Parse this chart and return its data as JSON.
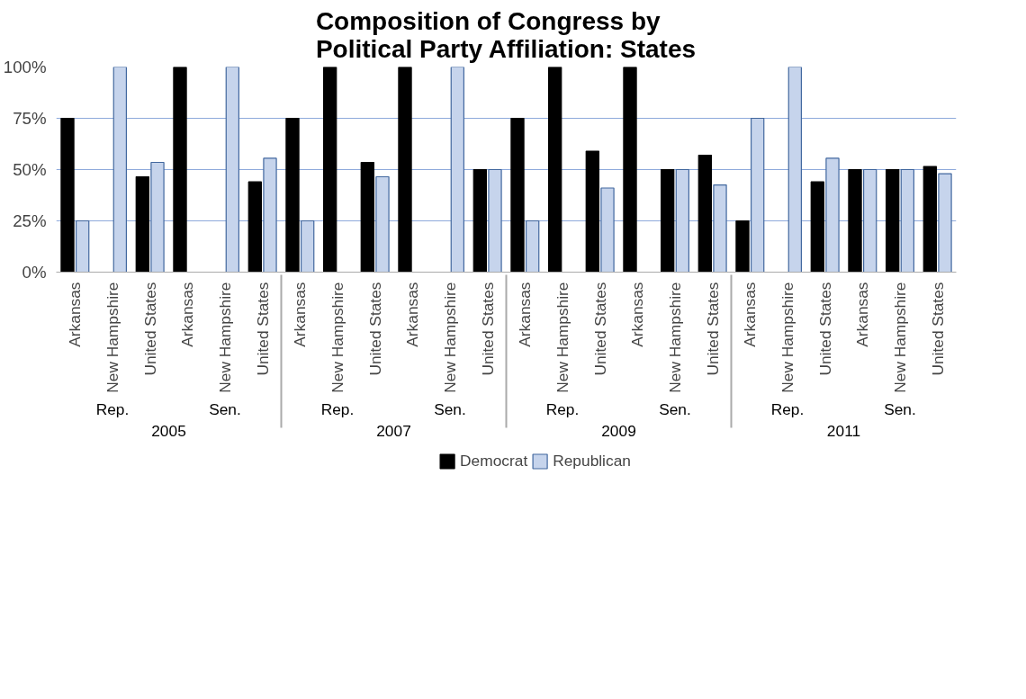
{
  "chart_data": {
    "type": "bar",
    "title": "Composition of Congress by\nPolitical Party Affiliation: States",
    "categories": [
      "Arkansas",
      "New Hampshire",
      "United States",
      "Arkansas",
      "New Hampshire",
      "United States",
      "Arkansas",
      "New Hampshire",
      "United States",
      "Arkansas",
      "New Hampshire",
      "United States",
      "Arkansas",
      "New Hampshire",
      "United States",
      "Arkansas",
      "New Hampshire",
      "United States",
      "Arkansas",
      "New Hampshire",
      "United States",
      "Arkansas",
      "New Hampshire",
      "United States"
    ],
    "annotations": [
      "Rep.",
      "Sen.",
      "Rep.",
      "Sen.",
      "Rep.",
      "Sen.",
      "Rep.",
      "Sen.",
      "2005",
      "2007",
      "2009",
      "2011"
    ],
    "series": [
      {
        "name": "Democrat",
        "color": "#000000",
        "values": [
          75,
          null,
          46.5,
          100,
          null,
          44,
          75,
          100,
          53.5,
          100,
          null,
          50,
          75,
          100,
          59,
          100,
          50,
          57,
          25,
          null,
          44,
          50,
          50,
          51.5
        ]
      },
      {
        "name": "Republican",
        "color": "#c6d4ec",
        "values": [
          25,
          100,
          53.5,
          null,
          100,
          55.5,
          25,
          null,
          46.5,
          null,
          100,
          50,
          25,
          null,
          41,
          null,
          50,
          42.5,
          75,
          100,
          55.5,
          50,
          50,
          48
        ]
      }
    ],
    "ylim": [
      0,
      100
    ],
    "yticks": [
      {
        "value": 0,
        "label": "0%"
      },
      {
        "value": 25,
        "label": "25%"
      },
      {
        "value": 50,
        "label": "50%"
      },
      {
        "value": 75,
        "label": "75%"
      },
      {
        "value": 100,
        "label": "100%"
      }
    ],
    "grid": "y",
    "legend": "bottom"
  }
}
